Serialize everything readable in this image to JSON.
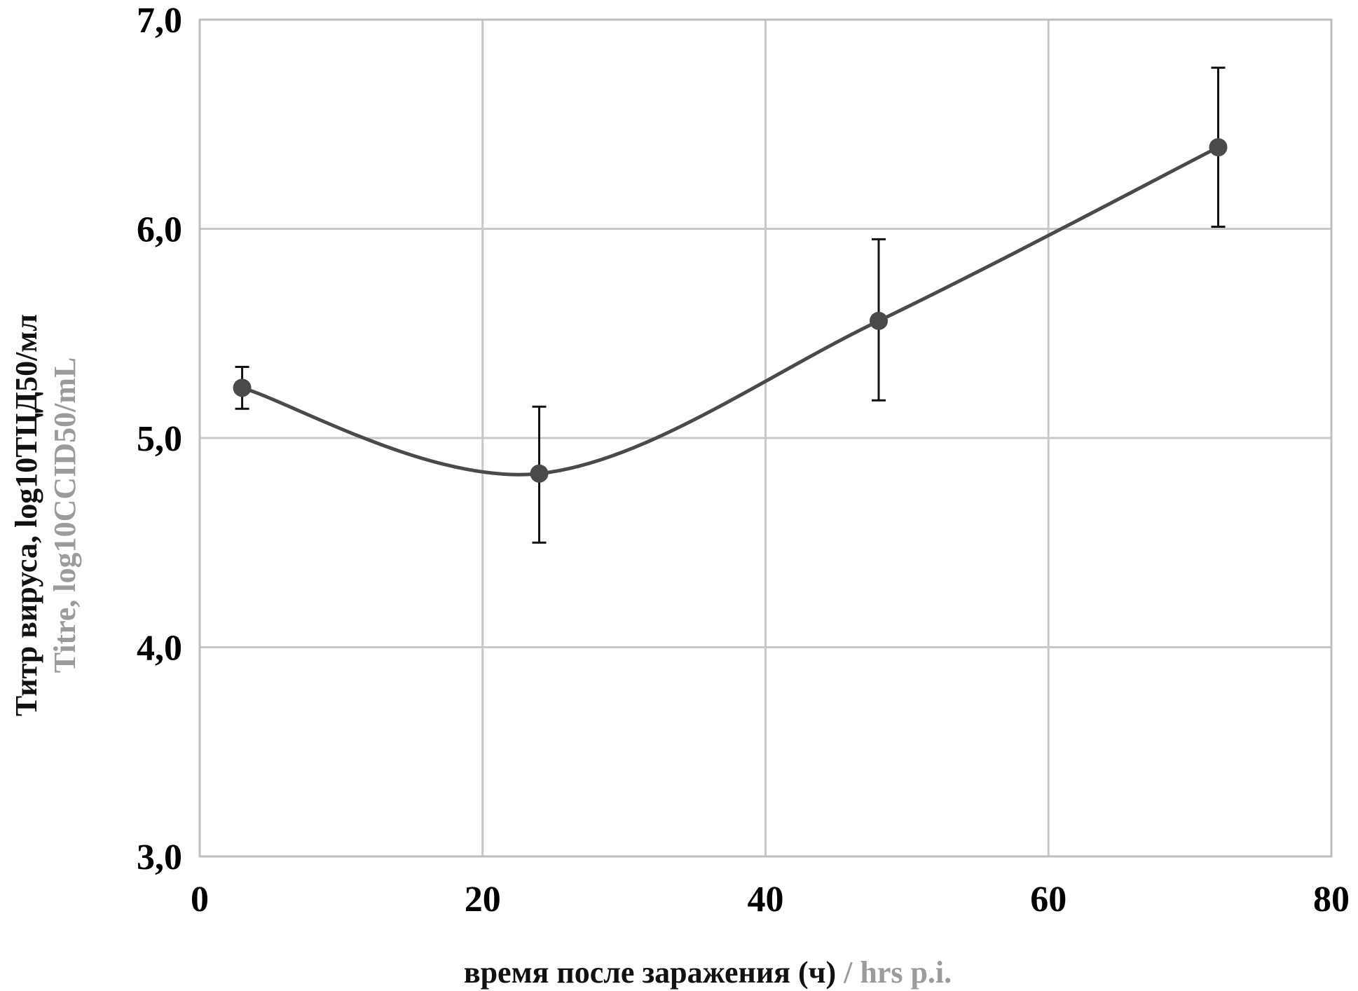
{
  "chart_data": {
    "type": "line",
    "x": [
      3,
      24,
      48,
      72
    ],
    "y": [
      5.24,
      4.83,
      5.56,
      6.39
    ],
    "error_upper": [
      5.34,
      5.15,
      5.95,
      6.77
    ],
    "error_lower": [
      5.14,
      4.5,
      5.18,
      6.01
    ],
    "xlim": [
      0,
      80
    ],
    "ylim": [
      3.0,
      7.0
    ],
    "x_ticks": [
      0,
      20,
      40,
      60,
      80
    ],
    "x_tick_labels": [
      "0",
      "20",
      "40",
      "60",
      "80"
    ],
    "y_ticks": [
      3.0,
      4.0,
      5.0,
      6.0,
      7.0
    ],
    "y_tick_labels": [
      "3,0",
      "4,0",
      "5,0",
      "6,0",
      "7,0"
    ],
    "xlabel_ru": "время после заражения (ч)",
    "xlabel_sep": " / ",
    "xlabel_en": "hrs p.i.",
    "ylabel_ru": "Титр вируса, log10ТЦД50/мл",
    "ylabel_en": "Titre, log10CCID50/mL",
    "grid": true,
    "smooth": true,
    "colors": {
      "line": "#4a4a4a",
      "marker": "#4a4a4a",
      "error_bar": "#111111",
      "grid": "#c8c8c8",
      "label_primary": "#111111",
      "label_secondary": "#9b9b9b"
    }
  }
}
